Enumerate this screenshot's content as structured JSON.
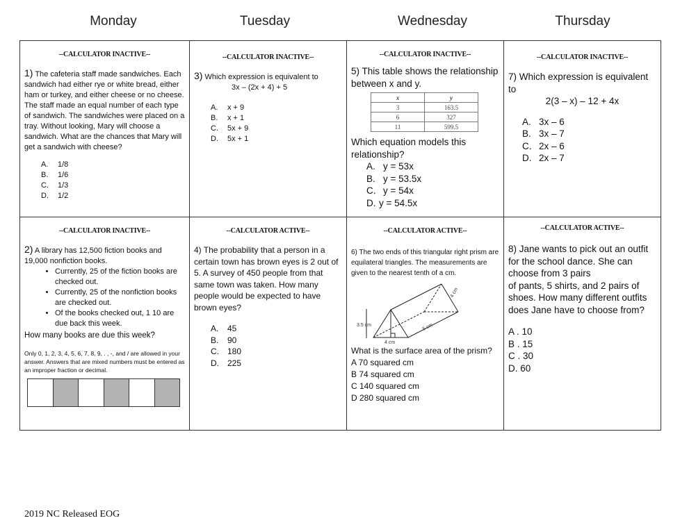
{
  "days": [
    "Monday",
    "Tuesday",
    "Wednesday",
    "Thursday"
  ],
  "q1": {
    "header": "--CALCULATOR INACTIVE--",
    "num": "1)",
    "text": "The cafeteria staff made sandwiches. Each sandwich had either rye or white bread, either ham or turkey, and either cheese or no cheese. The staff made an equal number of each type of sandwich. The sandwiches were placed on a tray. Without looking, Mary will choose a sandwich. What are the chances that Mary will get a sandwich with cheese?",
    "options": [
      {
        "l": "A.",
        "v": "1/8"
      },
      {
        "l": "B.",
        "v": "1/6"
      },
      {
        "l": "C.",
        "v": "1/3"
      },
      {
        "l": "D.",
        "v": "1/2"
      }
    ]
  },
  "q3": {
    "header": "--CALCULATOR INACTIVE--",
    "num": "3)",
    "text": "Which expression is equivalent to",
    "expr": "3x – (2x + 4) + 5",
    "options": [
      {
        "l": "A.",
        "v": "x + 9"
      },
      {
        "l": "B.",
        "v": "x + 1"
      },
      {
        "l": "C.",
        "v": "5x + 9"
      },
      {
        "l": "D.",
        "v": "5x + 1"
      }
    ]
  },
  "q5": {
    "header": "--CALCULATOR INACTIVE--",
    "text": "5) This table shows the relationship between x and y.",
    "table": {
      "headers": [
        "x",
        "y"
      ],
      "rows": [
        [
          "3",
          "163.5"
        ],
        [
          "6",
          "327"
        ],
        [
          "11",
          "599.5"
        ]
      ]
    },
    "question": "Which equation models this relationship?",
    "options": [
      {
        "l": "A.",
        "v": "y = 53x"
      },
      {
        "l": "B.",
        "v": "y = 53.5x"
      },
      {
        "l": "C.",
        "v": "y = 54x"
      },
      {
        "l": "D.",
        "v": "y = 54.5x"
      }
    ]
  },
  "q7": {
    "header": "--CALCULATOR INACTIVE--",
    "text": "7) Which expression is equivalent to",
    "expr": "2(3 – x) – 12 + 4x",
    "options": [
      {
        "l": "A.",
        "v": "3x – 6"
      },
      {
        "l": "B.",
        "v": "3x – 7"
      },
      {
        "l": "C.",
        "v": "2x – 6"
      },
      {
        "l": "D.",
        "v": "2x – 7"
      }
    ]
  },
  "q2": {
    "header": "--CALCULATOR INACTIVE--",
    "num": "2)",
    "text": "A library has 12,500 fiction books and 19,000 nonfiction books.",
    "bullets": [
      "Currently, 25 of the fiction books are checked out.",
      "Currently, 25 of the nonfiction books are checked out.",
      "Of the books checked out, 1 10 are due back this week."
    ],
    "question": "How many books are due this week?",
    "note": "Only 0, 1, 2, 3, 4, 5, 6, 7, 8, 9, . , -, and / are allowed in your answer. Answers that are mixed numbers must be entered as an improper fraction or decimal."
  },
  "q4": {
    "header": "--CALCULATOR ACTIVE--",
    "text": "4) The probability that a person in a certain town has brown eyes is 2 out of 5. A survey of 450 people from that same town was taken. How many people would be expected to have brown eyes?",
    "options": [
      {
        "l": "A.",
        "v": "45"
      },
      {
        "l": "B.",
        "v": "90"
      },
      {
        "l": "C.",
        "v": "180"
      },
      {
        "l": "D.",
        "v": "225"
      }
    ]
  },
  "q6": {
    "header": "--CALCULATOR ACTIVE--",
    "text": "6) The two ends of this triangular right prism are equilateral triangles. The measurements are given to the nearest tenth of a cm.",
    "diagram": {
      "height": "3.5 cm",
      "base": "4 cm",
      "length": "5 cm",
      "side": "4 cm"
    },
    "question": "What is the surface area of the prism?",
    "options": [
      "A 70 squared cm",
      "B 74 squared cm",
      "C 140 squared cm",
      "D 280 squared cm"
    ]
  },
  "q8": {
    "header": "--CALCULATOR ACTIVE--",
    "text1": "8) Jane wants to pick out an outfit for the school dance. She can choose from 3 pairs",
    "text2": "of pants, 5 shirts, and 2 pairs of shoes. How many different outfits does Jane have to choose from?",
    "options": [
      "A . 10",
      "B . 15",
      "C . 30",
      "D.  60"
    ]
  },
  "footer": "2019 NC Released EOG"
}
